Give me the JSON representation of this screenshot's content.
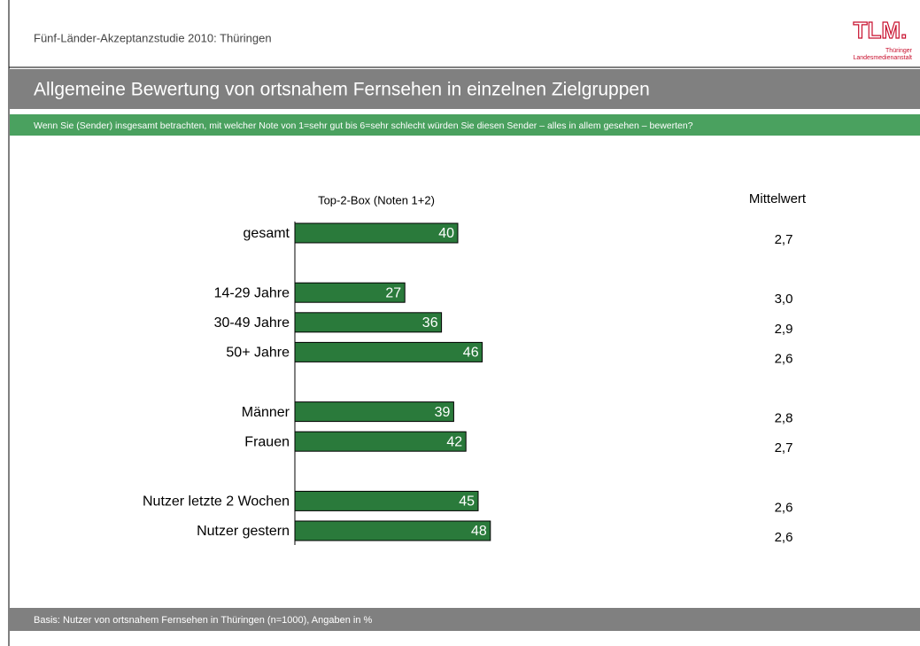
{
  "header": {
    "study": "Fünf-Länder-Akzeptanzstudie 2010: Thüringen",
    "logo": "TLM.",
    "logo_sub1": "Thüringer",
    "logo_sub2": "Landesmedienanstalt"
  },
  "chart_data": {
    "type": "hbar",
    "title": "Allgemeine Bewertung von ortsnahem Fernsehen in einzelnen Zielgruppen",
    "subtitle": "Wenn Sie (Sender) insgesamt betrachten, mit welcher Note von 1=sehr gut bis 6=sehr schlecht würden Sie diesen Sender – alles in allem gesehen – bewerten?",
    "bar_header": "Top-2-Box (Noten 1+2)",
    "categories": [
      "gesamt",
      null,
      "14-29 Jahre",
      "30-49 Jahre",
      "50+ Jahre",
      null,
      "Männer",
      "Frauen",
      null,
      "Nutzer letzte 2 Wochen",
      "Nutzer gestern"
    ],
    "values": [
      40,
      null,
      27,
      36,
      46,
      null,
      39,
      42,
      null,
      45,
      48
    ],
    "color": "#2a7a3b",
    "xlim": [
      0,
      100
    ],
    "mean": {
      "label": "Mittelwert",
      "values": [
        2.7,
        null,
        3.0,
        2.9,
        2.6,
        null,
        2.8,
        2.7,
        null,
        2.6,
        2.6
      ],
      "value_labels": [
        "2,7",
        null,
        "3,0",
        "2,9",
        "2,6",
        null,
        "2,8",
        "2,7",
        null,
        "2,6",
        "2,6"
      ]
    },
    "footnote": "Basis: Nutzer von ortsnahem Fernsehen in Thüringen (n=1000), Angaben in %"
  }
}
